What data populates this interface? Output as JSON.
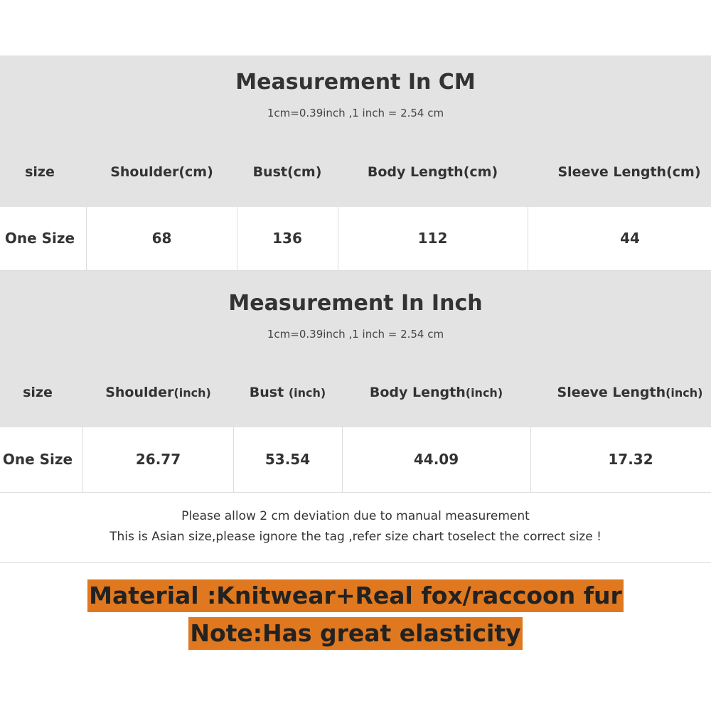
{
  "cm_section": {
    "title": "Measurement In CM",
    "subtitle": "1cm=0.39inch ,1 inch = 2.54 cm",
    "headers": [
      "size",
      "Shoulder(cm)",
      "Bust(cm)",
      "Body Length(cm)",
      "Sleeve Length(cm)"
    ],
    "row": [
      "One Size",
      "68",
      "136",
      "112",
      "44"
    ]
  },
  "inch_section": {
    "title": "Measurement In Inch",
    "subtitle": "1cm=0.39inch ,1 inch = 2.54 cm",
    "headers": [
      {
        "main": "size",
        "unit": ""
      },
      {
        "main": "Shoulder",
        "unit": "(inch)"
      },
      {
        "main": "Bust ",
        "unit": "(inch)"
      },
      {
        "main": "Body Length",
        "unit": "(inch)"
      },
      {
        "main": "Sleeve Length",
        "unit": "(inch)"
      }
    ],
    "row": [
      "One Size",
      "26.77",
      "53.54",
      "44.09",
      "17.32"
    ]
  },
  "notes": {
    "line1": "Please allow 2 cm deviation due to manual measurement",
    "line2": "This is Asian size,please ignore the tag ,refer size chart toselect the correct size !"
  },
  "highlights": {
    "material": "Material :Knitwear+Real fox/raccoon fur",
    "note": "Note:Has great elasticity",
    "color": "#e0781f"
  }
}
